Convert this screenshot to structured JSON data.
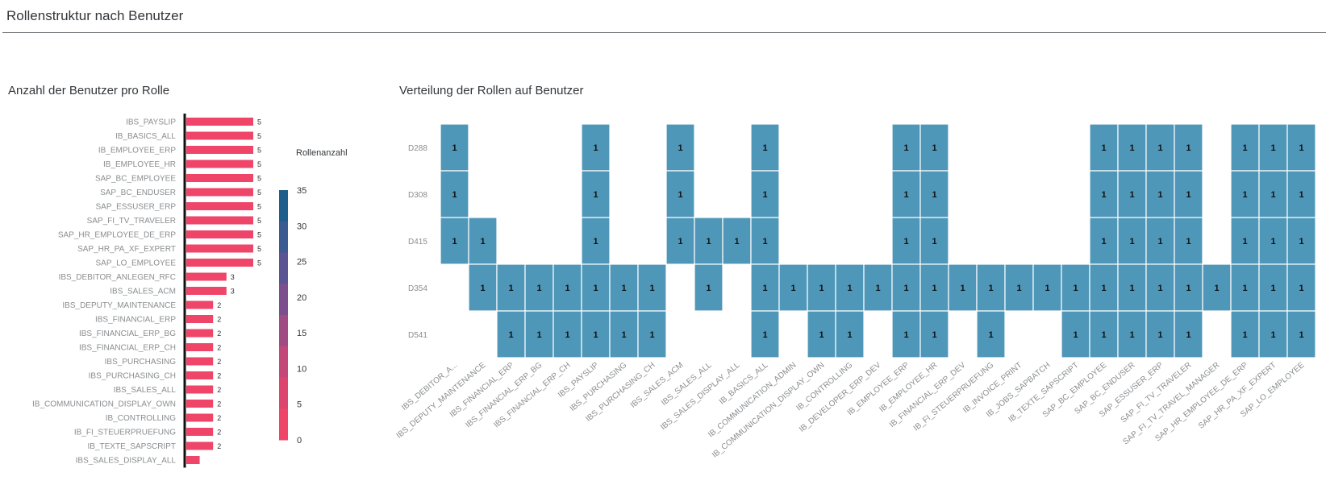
{
  "page": {
    "title": "Rollenstruktur nach Benutzer"
  },
  "left_panel": {
    "title": "Anzahl der Benutzer pro Rolle"
  },
  "right_panel": {
    "title": "Verteilung der Rollen auf Benutzer"
  },
  "legend": {
    "title": "Rollenanzahl",
    "ticks": [
      "35",
      "30",
      "25",
      "20",
      "15",
      "10",
      "5",
      "0"
    ],
    "steps": [
      "#1d5e8c",
      "#3b5a91",
      "#5b5493",
      "#7d4e8d",
      "#a04b84",
      "#c34778",
      "#dc466e",
      "#ef4569"
    ]
  },
  "colors": {
    "bar": "#ef4569",
    "cell": "#4f97b8",
    "axis": "#111111"
  },
  "chart_data": [
    {
      "type": "bar",
      "orientation": "horizontal",
      "categories": [
        "IBS_PAYSLIP",
        "IB_BASICS_ALL",
        "IB_EMPLOYEE_ERP",
        "IB_EMPLOYEE_HR",
        "SAP_BC_EMPLOYEE",
        "SAP_BC_ENDUSER",
        "SAP_ESSUSER_ERP",
        "SAP_FI_TV_TRAVELER",
        "SAP_HR_EMPLOYEE_DE_ERP",
        "SAP_HR_PA_XF_EXPERT",
        "SAP_LO_EMPLOYEE",
        "IBS_DEBITOR_ANLEGEN_RFC",
        "IBS_SALES_ACM",
        "IBS_DEPUTY_MAINTENANCE",
        "IBS_FINANCIAL_ERP",
        "IBS_FINANCIAL_ERP_BG",
        "IBS_FINANCIAL_ERP_CH",
        "IBS_PURCHASING",
        "IBS_PURCHASING_CH",
        "IBS_SALES_ALL",
        "IB_COMMUNICATION_DISPLAY_OWN",
        "IB_CONTROLLING",
        "IB_FI_STEUERPRUEFUNG",
        "IB_TEXTE_SAPSCRIPT",
        "IBS_SALES_DISPLAY_ALL"
      ],
      "values": [
        5,
        5,
        5,
        5,
        5,
        5,
        5,
        5,
        5,
        5,
        5,
        3,
        3,
        2,
        2,
        2,
        2,
        2,
        2,
        2,
        2,
        2,
        2,
        2,
        1
      ],
      "value_labels": [
        "5",
        "5",
        "5",
        "5",
        "5",
        "5",
        "5",
        "5",
        "5",
        "5",
        "5",
        "3",
        "3",
        "2",
        "2",
        "2",
        "2",
        "2",
        "2",
        "2",
        "2",
        "2",
        "2",
        "2",
        ""
      ],
      "xlim": [
        0,
        5
      ]
    },
    {
      "type": "heatmap",
      "rows": [
        "D288",
        "D308",
        "D415",
        "D354",
        "D541"
      ],
      "columns": [
        "IBS_DEBITOR_A...",
        "IBS_DEPUTY_MAINTENANCE",
        "IBS_FINANCIAL_ERP",
        "IBS_FINANCIAL_ERP_BG",
        "IBS_FINANCIAL_ERP_CH",
        "IBS_PAYSLIP",
        "IBS_PURCHASING",
        "IBS_PURCHASING_CH",
        "IBS_SALES_ACM",
        "IBS_SALES_ALL",
        "IBS_SALES_DISPLAY_ALL",
        "IB_BASICS_ALL",
        "IB_COMMUNICATION_ADMIN",
        "IB_COMMUNICATION_DISPLAY_OWN",
        "IB_CONTROLLING",
        "IB_DEVELOPER_ERP_DEV",
        "IB_EMPLOYEE_ERP",
        "IB_EMPLOYEE_HR",
        "IB_FINANCIAL_ERP_DEV",
        "IB_FI_STEUERPRUEFUNG",
        "IB_INVOICE_PRINT",
        "IB_JOBS_SAPBATCH",
        "IB_TEXTE_SAPSCRIPT",
        "SAP_BC_EMPLOYEE",
        "SAP_BC_ENDUSER",
        "SAP_ESSUSER_ERP",
        "SAP_FI_TV_TRAVELER",
        "SAP_FI_TV_TRAVEL_MANAGER",
        "SAP_HR_EMPLOYEE_DE_ERP",
        "SAP_HR_PA_XF_EXPERT",
        "SAP_LO_EMPLOYEE"
      ],
      "values": [
        [
          1,
          0,
          0,
          0,
          0,
          1,
          0,
          0,
          1,
          0,
          0,
          1,
          0,
          0,
          0,
          0,
          1,
          1,
          0,
          0,
          0,
          0,
          0,
          1,
          1,
          1,
          1,
          0,
          1,
          1,
          1
        ],
        [
          1,
          0,
          0,
          0,
          0,
          1,
          0,
          0,
          1,
          0,
          0,
          1,
          0,
          0,
          0,
          0,
          1,
          1,
          0,
          0,
          0,
          0,
          0,
          1,
          1,
          1,
          1,
          0,
          1,
          1,
          1
        ],
        [
          1,
          1,
          0,
          0,
          0,
          1,
          0,
          0,
          1,
          1,
          1,
          1,
          0,
          0,
          0,
          0,
          1,
          1,
          0,
          0,
          0,
          0,
          0,
          1,
          1,
          1,
          1,
          0,
          1,
          1,
          1
        ],
        [
          0,
          1,
          1,
          1,
          1,
          1,
          1,
          1,
          0,
          1,
          0,
          1,
          1,
          1,
          1,
          1,
          1,
          1,
          1,
          1,
          1,
          1,
          1,
          1,
          1,
          1,
          1,
          1,
          1,
          1,
          1
        ],
        [
          0,
          0,
          1,
          1,
          1,
          1,
          1,
          1,
          0,
          0,
          0,
          1,
          0,
          1,
          1,
          0,
          1,
          1,
          0,
          1,
          0,
          0,
          1,
          1,
          1,
          1,
          1,
          0,
          1,
          1,
          1
        ]
      ],
      "cell_label": "1"
    }
  ]
}
